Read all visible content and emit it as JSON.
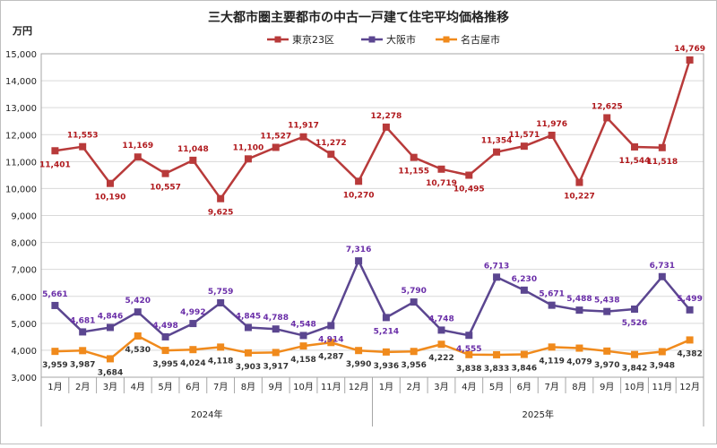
{
  "chart_data": {
    "type": "line",
    "title": "三大都市圏主要都市の中古一戸建て住宅平均価格推移",
    "ylabel": "万円",
    "xlabel": "",
    "ylim": [
      3000,
      15000
    ],
    "ytick_step": 1000,
    "grid": true,
    "legend_position": "top",
    "categories": [
      "1月",
      "2月",
      "3月",
      "4月",
      "5月",
      "6月",
      "7月",
      "8月",
      "9月",
      "10月",
      "11月",
      "12月",
      "1月",
      "2月",
      "3月",
      "4月",
      "5月",
      "6月",
      "7月",
      "8月",
      "9月",
      "10月",
      "11月",
      "12月"
    ],
    "year_groups": [
      {
        "label": "2024年",
        "start": 0,
        "end": 11
      },
      {
        "label": "2025年",
        "start": 12,
        "end": 23
      }
    ],
    "series": [
      {
        "name": "東京23区",
        "color": "#b83a3a",
        "label_color": "#b0191d",
        "values": [
          11401,
          11553,
          10190,
          11169,
          10557,
          11048,
          9625,
          11100,
          11527,
          11917,
          11272,
          10270,
          12278,
          11155,
          10719,
          10495,
          11354,
          11571,
          11976,
          10227,
          12625,
          11544,
          11518,
          14769
        ]
      },
      {
        "name": "大阪市",
        "color": "#5b4690",
        "label_color": "#6a2ea8",
        "values": [
          5661,
          4681,
          4846,
          5420,
          4498,
          4992,
          5759,
          4845,
          4788,
          4548,
          4914,
          7316,
          5214,
          5790,
          4748,
          4555,
          6713,
          6230,
          5671,
          5488,
          5438,
          5526,
          6731,
          5499
        ]
      },
      {
        "name": "名古屋市",
        "color": "#f08a1c",
        "label_color": "#333333",
        "values": [
          3959,
          3987,
          3684,
          4530,
          3995,
          4024,
          4118,
          3903,
          3917,
          4158,
          4287,
          3990,
          3936,
          3956,
          4222,
          3838,
          3833,
          3846,
          4119,
          4079,
          3970,
          3842,
          3948,
          4382
        ]
      }
    ]
  }
}
